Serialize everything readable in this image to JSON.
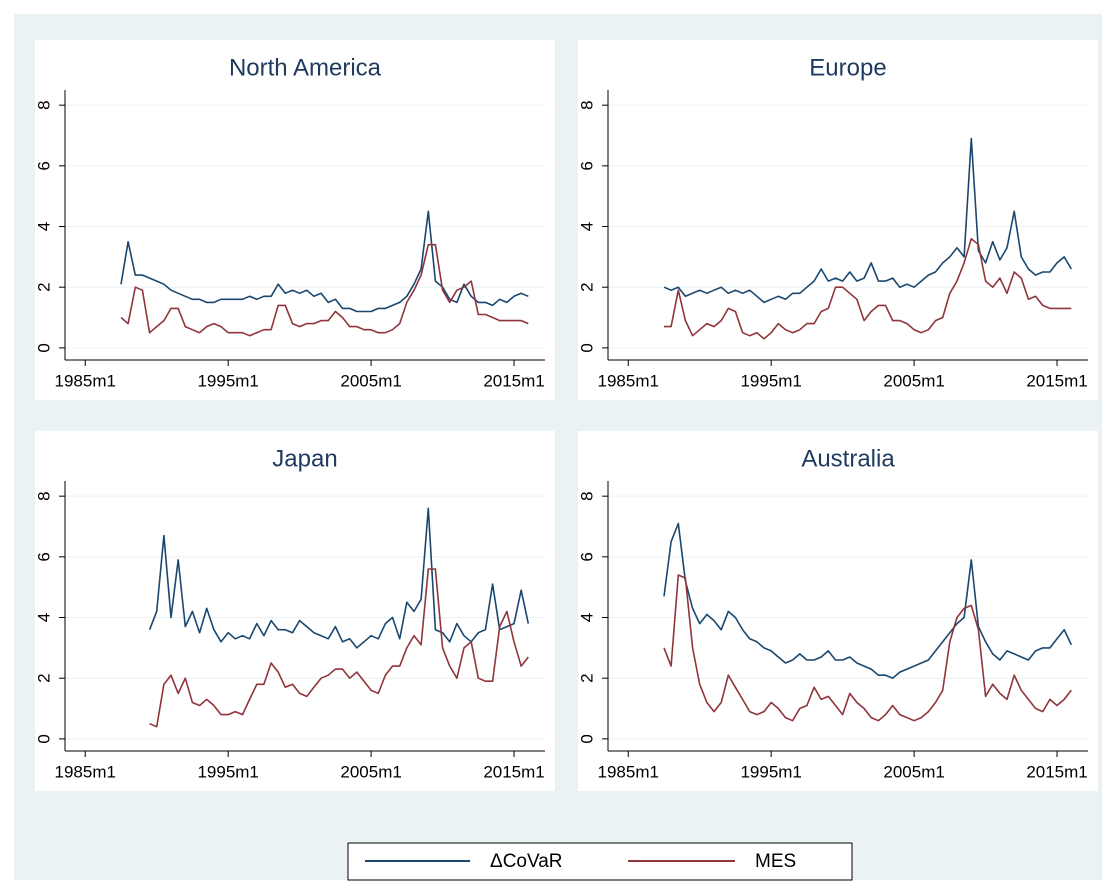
{
  "chart_data": [
    {
      "type": "line",
      "title": "North America",
      "x": [
        "1987m7",
        "1988m1",
        "1988m7",
        "1989m1",
        "1989m7",
        "1990m1",
        "1990m7",
        "1991m1",
        "1991m7",
        "1992m1",
        "1992m7",
        "1993m1",
        "1993m7",
        "1994m1",
        "1994m7",
        "1995m1",
        "1995m7",
        "1996m1",
        "1996m7",
        "1997m1",
        "1997m7",
        "1998m1",
        "1998m7",
        "1999m1",
        "1999m7",
        "2000m1",
        "2000m7",
        "2001m1",
        "2001m7",
        "2002m1",
        "2002m7",
        "2003m1",
        "2003m7",
        "2004m1",
        "2004m7",
        "2005m1",
        "2005m7",
        "2006m1",
        "2006m7",
        "2007m1",
        "2007m7",
        "2008m1",
        "2008m7",
        "2009m1",
        "2009m7",
        "2010m1",
        "2010m7",
        "2011m1",
        "2011m7",
        "2012m1",
        "2012m7",
        "2013m1",
        "2013m7",
        "2014m1",
        "2014m7",
        "2015m1",
        "2015m7",
        "2016m1"
      ],
      "series": [
        {
          "name": "ΔCoVaR",
          "color": "#1a476f",
          "values": [
            2.1,
            3.5,
            2.4,
            2.4,
            2.3,
            2.2,
            2.1,
            1.9,
            1.8,
            1.7,
            1.6,
            1.6,
            1.5,
            1.5,
            1.6,
            1.6,
            1.6,
            1.6,
            1.7,
            1.6,
            1.7,
            1.7,
            2.1,
            1.8,
            1.9,
            1.8,
            1.9,
            1.7,
            1.8,
            1.5,
            1.6,
            1.3,
            1.3,
            1.2,
            1.2,
            1.2,
            1.3,
            1.3,
            1.4,
            1.5,
            1.7,
            2.1,
            2.6,
            4.5,
            2.2,
            2.0,
            1.6,
            1.5,
            2.1,
            1.7,
            1.5,
            1.5,
            1.4,
            1.6,
            1.5,
            1.7,
            1.8,
            1.7
          ]
        },
        {
          "name": "MES",
          "color": "#90353b",
          "values": [
            1.0,
            0.8,
            2.0,
            1.9,
            0.5,
            0.7,
            0.9,
            1.3,
            1.3,
            0.7,
            0.6,
            0.5,
            0.7,
            0.8,
            0.7,
            0.5,
            0.5,
            0.5,
            0.4,
            0.5,
            0.6,
            0.6,
            1.4,
            1.4,
            0.8,
            0.7,
            0.8,
            0.8,
            0.9,
            0.9,
            1.2,
            1.0,
            0.7,
            0.7,
            0.6,
            0.6,
            0.5,
            0.5,
            0.6,
            0.8,
            1.5,
            1.9,
            2.4,
            3.4,
            3.4,
            1.9,
            1.5,
            1.9,
            2.0,
            2.2,
            1.1,
            1.1,
            1.0,
            0.9,
            0.9,
            0.9,
            0.9,
            0.8
          ]
        }
      ],
      "xlim": [
        "1983m8",
        "2017m3"
      ],
      "xticks": [
        "1985m1",
        "1995m1",
        "2005m1",
        "2015m1"
      ],
      "ylim": [
        -0.4,
        8.5
      ],
      "yticks": [
        0,
        2,
        4,
        6,
        8
      ],
      "grid": true
    },
    {
      "type": "line",
      "title": "Europe",
      "x": [
        "1987m7",
        "1988m1",
        "1988m7",
        "1989m1",
        "1989m7",
        "1990m1",
        "1990m7",
        "1991m1",
        "1991m7",
        "1992m1",
        "1992m7",
        "1993m1",
        "1993m7",
        "1994m1",
        "1994m7",
        "1995m1",
        "1995m7",
        "1996m1",
        "1996m7",
        "1997m1",
        "1997m7",
        "1998m1",
        "1998m7",
        "1999m1",
        "1999m7",
        "2000m1",
        "2000m7",
        "2001m1",
        "2001m7",
        "2002m1",
        "2002m7",
        "2003m1",
        "2003m7",
        "2004m1",
        "2004m7",
        "2005m1",
        "2005m7",
        "2006m1",
        "2006m7",
        "2007m1",
        "2007m7",
        "2008m1",
        "2008m7",
        "2009m1",
        "2009m7",
        "2010m1",
        "2010m7",
        "2011m1",
        "2011m7",
        "2012m1",
        "2012m7",
        "2013m1",
        "2013m7",
        "2014m1",
        "2014m7",
        "2015m1",
        "2015m7",
        "2016m1"
      ],
      "series": [
        {
          "name": "ΔCoVaR",
          "color": "#1a476f",
          "values": [
            2.0,
            1.9,
            2.0,
            1.7,
            1.8,
            1.9,
            1.8,
            1.9,
            2.0,
            1.8,
            1.9,
            1.8,
            1.9,
            1.7,
            1.5,
            1.6,
            1.7,
            1.6,
            1.8,
            1.8,
            2.0,
            2.2,
            2.6,
            2.2,
            2.3,
            2.2,
            2.5,
            2.2,
            2.3,
            2.8,
            2.2,
            2.2,
            2.3,
            2.0,
            2.1,
            2.0,
            2.2,
            2.4,
            2.5,
            2.8,
            3.0,
            3.3,
            3.0,
            6.9,
            3.2,
            2.8,
            3.5,
            2.9,
            3.3,
            4.5,
            3.0,
            2.6,
            2.4,
            2.5,
            2.5,
            2.8,
            3.0,
            2.6
          ]
        },
        {
          "name": "MES",
          "color": "#90353b",
          "values": [
            0.7,
            0.7,
            1.9,
            0.9,
            0.4,
            0.6,
            0.8,
            0.7,
            0.9,
            1.3,
            1.2,
            0.5,
            0.4,
            0.5,
            0.3,
            0.5,
            0.8,
            0.6,
            0.5,
            0.6,
            0.8,
            0.8,
            1.2,
            1.3,
            2.0,
            2.0,
            1.8,
            1.6,
            0.9,
            1.2,
            1.4,
            1.4,
            0.9,
            0.9,
            0.8,
            0.6,
            0.5,
            0.6,
            0.9,
            1.0,
            1.8,
            2.2,
            2.8,
            3.6,
            3.4,
            2.2,
            2.0,
            2.3,
            1.8,
            2.5,
            2.3,
            1.6,
            1.7,
            1.4,
            1.3,
            1.3,
            1.3,
            1.3
          ]
        }
      ],
      "xlim": [
        "1983m8",
        "2017m3"
      ],
      "xticks": [
        "1985m1",
        "1995m1",
        "2005m1",
        "2015m1"
      ],
      "ylim": [
        -0.4,
        8.5
      ],
      "yticks": [
        0,
        2,
        4,
        6,
        8
      ],
      "grid": true
    },
    {
      "type": "line",
      "title": "Japan",
      "x": [
        "1989m7",
        "1990m1",
        "1990m7",
        "1991m1",
        "1991m7",
        "1992m1",
        "1992m7",
        "1993m1",
        "1993m7",
        "1994m1",
        "1994m7",
        "1995m1",
        "1995m7",
        "1996m1",
        "1996m7",
        "1997m1",
        "1997m7",
        "1998m1",
        "1998m7",
        "1999m1",
        "1999m7",
        "2000m1",
        "2000m7",
        "2001m1",
        "2001m7",
        "2002m1",
        "2002m7",
        "2003m1",
        "2003m7",
        "2004m1",
        "2004m7",
        "2005m1",
        "2005m7",
        "2006m1",
        "2006m7",
        "2007m1",
        "2007m7",
        "2008m1",
        "2008m7",
        "2009m1",
        "2009m7",
        "2010m1",
        "2010m7",
        "2011m1",
        "2011m7",
        "2012m1",
        "2012m7",
        "2013m1",
        "2013m7",
        "2014m1",
        "2014m7",
        "2015m1",
        "2015m7",
        "2016m1"
      ],
      "series": [
        {
          "name": "ΔCoVaR",
          "color": "#1a476f",
          "values": [
            3.6,
            4.2,
            6.7,
            4.0,
            5.9,
            3.7,
            4.2,
            3.5,
            4.3,
            3.6,
            3.2,
            3.5,
            3.3,
            3.4,
            3.3,
            3.8,
            3.4,
            3.9,
            3.6,
            3.6,
            3.5,
            3.9,
            3.7,
            3.5,
            3.4,
            3.3,
            3.7,
            3.2,
            3.3,
            3.0,
            3.2,
            3.4,
            3.3,
            3.8,
            4.0,
            3.3,
            4.5,
            4.2,
            4.6,
            7.6,
            3.6,
            3.5,
            3.2,
            3.8,
            3.4,
            3.2,
            3.5,
            3.6,
            5.1,
            3.6,
            3.7,
            3.8,
            4.9,
            3.8
          ]
        },
        {
          "name": "MES",
          "color": "#90353b",
          "values": [
            0.5,
            0.4,
            1.8,
            2.1,
            1.5,
            2.0,
            1.2,
            1.1,
            1.3,
            1.1,
            0.8,
            0.8,
            0.9,
            0.8,
            1.3,
            1.8,
            1.8,
            2.5,
            2.2,
            1.7,
            1.8,
            1.5,
            1.4,
            1.7,
            2.0,
            2.1,
            2.3,
            2.3,
            2.0,
            2.2,
            1.9,
            1.6,
            1.5,
            2.1,
            2.4,
            2.4,
            3.0,
            3.4,
            3.1,
            5.6,
            5.6,
            3.0,
            2.4,
            2.0,
            3.0,
            3.2,
            2.0,
            1.9,
            1.9,
            3.7,
            4.2,
            3.2,
            2.4,
            2.7
          ]
        }
      ],
      "xlim": [
        "1983m8",
        "2017m3"
      ],
      "xticks": [
        "1985m1",
        "1995m1",
        "2005m1",
        "2015m1"
      ],
      "ylim": [
        -0.4,
        8.5
      ],
      "yticks": [
        0,
        2,
        4,
        6,
        8
      ],
      "grid": true
    },
    {
      "type": "line",
      "title": "Australia",
      "x": [
        "1987m7",
        "1988m1",
        "1988m7",
        "1989m1",
        "1989m7",
        "1990m1",
        "1990m7",
        "1991m1",
        "1991m7",
        "1992m1",
        "1992m7",
        "1993m1",
        "1993m7",
        "1994m1",
        "1994m7",
        "1995m1",
        "1995m7",
        "1996m1",
        "1996m7",
        "1997m1",
        "1997m7",
        "1998m1",
        "1998m7",
        "1999m1",
        "1999m7",
        "2000m1",
        "2000m7",
        "2001m1",
        "2001m7",
        "2002m1",
        "2002m7",
        "2003m1",
        "2003m7",
        "2004m1",
        "2004m7",
        "2005m1",
        "2005m7",
        "2006m1",
        "2006m7",
        "2007m1",
        "2007m7",
        "2008m1",
        "2008m7",
        "2009m1",
        "2009m7",
        "2010m1",
        "2010m7",
        "2011m1",
        "2011m7",
        "2012m1",
        "2012m7",
        "2013m1",
        "2013m7",
        "2014m1",
        "2014m7",
        "2015m1",
        "2015m7",
        "2016m1"
      ],
      "series": [
        {
          "name": "ΔCoVaR",
          "color": "#1a476f",
          "values": [
            4.7,
            6.5,
            7.1,
            5.2,
            4.3,
            3.8,
            4.1,
            3.9,
            3.6,
            4.2,
            4.0,
            3.6,
            3.3,
            3.2,
            3.0,
            2.9,
            2.7,
            2.5,
            2.6,
            2.8,
            2.6,
            2.6,
            2.7,
            2.9,
            2.6,
            2.6,
            2.7,
            2.5,
            2.4,
            2.3,
            2.1,
            2.1,
            2.0,
            2.2,
            2.3,
            2.4,
            2.5,
            2.6,
            2.9,
            3.2,
            3.5,
            3.8,
            4.0,
            5.9,
            3.7,
            3.2,
            2.8,
            2.6,
            2.9,
            2.8,
            2.7,
            2.6,
            2.9,
            3.0,
            3.0,
            3.3,
            3.6,
            3.1
          ]
        },
        {
          "name": "MES",
          "color": "#90353b",
          "values": [
            3.0,
            2.4,
            5.4,
            5.3,
            3.0,
            1.8,
            1.2,
            0.9,
            1.2,
            2.1,
            1.7,
            1.3,
            0.9,
            0.8,
            0.9,
            1.2,
            1.0,
            0.7,
            0.6,
            1.0,
            1.1,
            1.7,
            1.3,
            1.4,
            1.1,
            0.8,
            1.5,
            1.2,
            1.0,
            0.7,
            0.6,
            0.8,
            1.1,
            0.8,
            0.7,
            0.6,
            0.7,
            0.9,
            1.2,
            1.6,
            3.2,
            4.0,
            4.3,
            4.4,
            3.6,
            1.4,
            1.8,
            1.5,
            1.3,
            2.1,
            1.6,
            1.3,
            1.0,
            0.9,
            1.3,
            1.1,
            1.3,
            1.6
          ]
        }
      ],
      "xlim": [
        "1983m8",
        "2017m3"
      ],
      "xticks": [
        "1985m1",
        "1995m1",
        "2005m1",
        "2015m1"
      ],
      "ylim": [
        -0.4,
        8.5
      ],
      "yticks": [
        0,
        2,
        4,
        6,
        8
      ],
      "grid": true
    }
  ]
}
